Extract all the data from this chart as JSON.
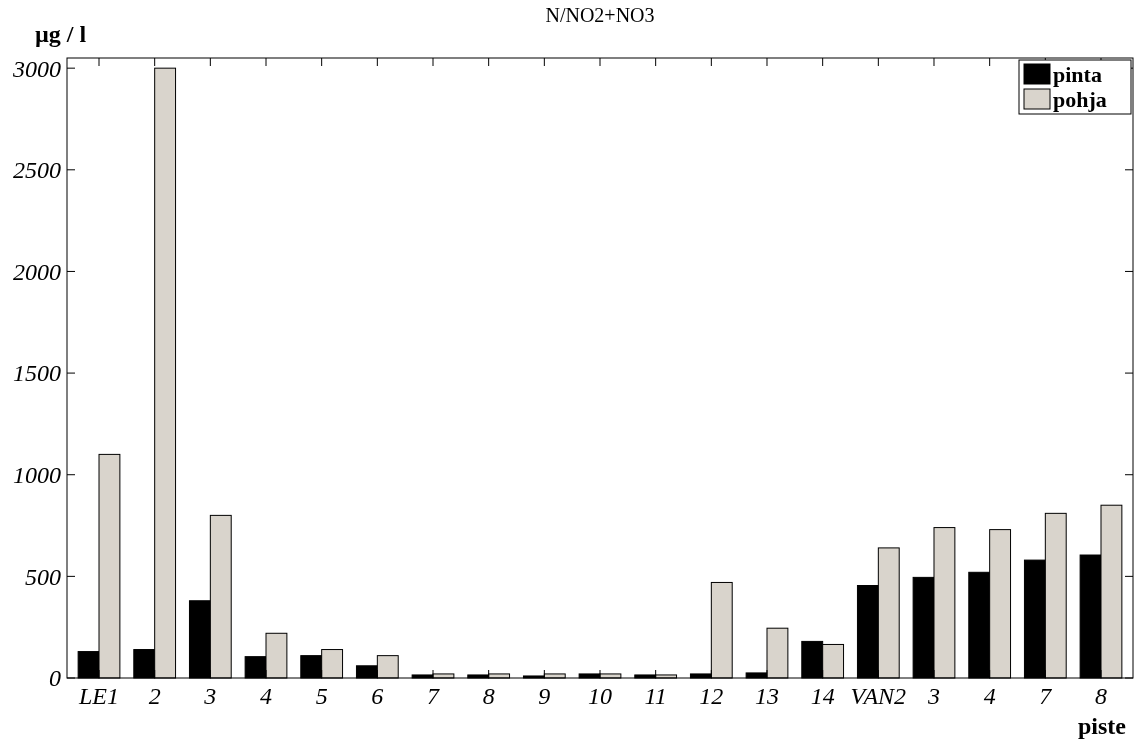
{
  "chart_data": {
    "type": "bar",
    "title": "N/NO2+NO3",
    "ylabel": "µg / l",
    "xlabel": "piste",
    "categories": [
      "LE1",
      "2",
      "3",
      "4",
      "5",
      "6",
      "7",
      "8",
      "9",
      "10",
      "11",
      "12",
      "13",
      "14",
      "VAN2",
      "3",
      "4",
      "7",
      "8"
    ],
    "series": [
      {
        "name": "pinta",
        "color": "#000000",
        "values": [
          130,
          140,
          380,
          105,
          110,
          60,
          15,
          15,
          10,
          20,
          15,
          20,
          25,
          180,
          455,
          495,
          520,
          580,
          605
        ]
      },
      {
        "name": "pohja",
        "color": "#d9d4cc",
        "values": [
          1100,
          3000,
          800,
          220,
          140,
          110,
          20,
          20,
          20,
          20,
          15,
          470,
          245,
          165,
          640,
          740,
          730,
          810,
          850
        ]
      }
    ],
    "ylim": [
      0,
      3050
    ],
    "yticks": [
      0,
      500,
      1000,
      1500,
      2000,
      2500,
      3000
    ],
    "grid": false,
    "legend": "top right"
  }
}
